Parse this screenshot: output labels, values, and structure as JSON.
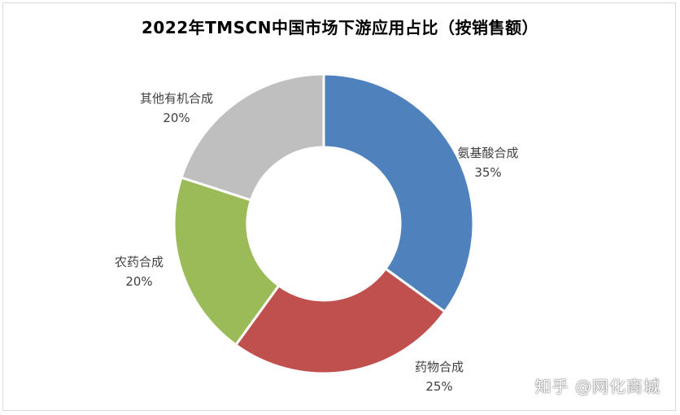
{
  "chart_data": {
    "type": "pie",
    "style": "donut",
    "title": "2022年TMSCN中国市场下游应用占比（按销售额）",
    "legend": "none",
    "slices": [
      {
        "label": "氨基酸合成",
        "value": 35,
        "display": "35%",
        "color": "#4f81bd"
      },
      {
        "label": "药物合成",
        "value": 25,
        "display": "25%",
        "color": "#c0504d"
      },
      {
        "label": "农药合成",
        "value": 20,
        "display": "20%",
        "color": "#9bbb59"
      },
      {
        "label": "其他有机合成",
        "value": 20,
        "display": "20%",
        "color": "#bfbfbf"
      }
    ]
  },
  "watermark": "知乎 @网化商城"
}
